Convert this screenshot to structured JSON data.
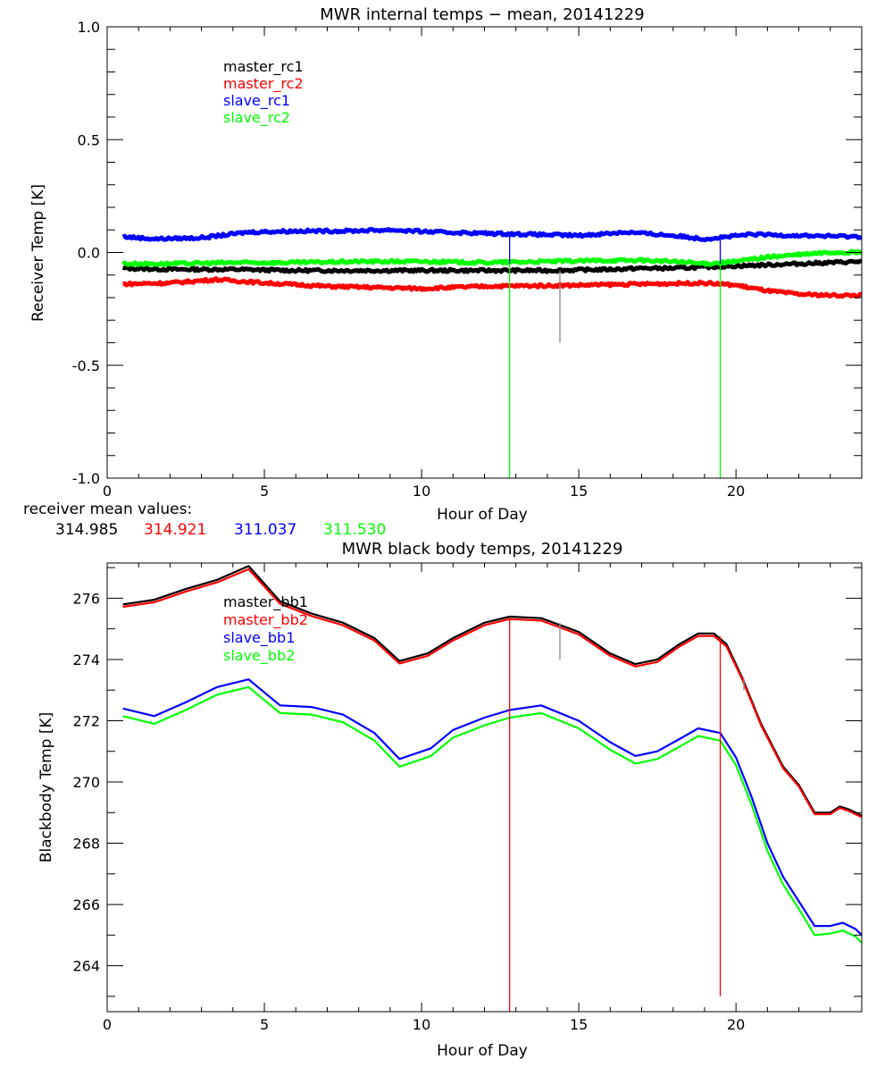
{
  "chart_data": [
    {
      "type": "line",
      "title": "MWR internal temps − mean, 20141229",
      "xlabel": "Hour of Day",
      "ylabel": "Receiver Temp [K]",
      "xlim": [
        0,
        24
      ],
      "ylim": [
        -1.0,
        1.0
      ],
      "xticks": [
        "0",
        "5",
        "10",
        "15",
        "20"
      ],
      "xtick_values": [
        0,
        5,
        10,
        15,
        20
      ],
      "yticks": [
        "-1.0",
        "-0.5",
        "0.0",
        "0.5",
        "1.0"
      ],
      "ytick_values": [
        -1.0,
        -0.5,
        0.0,
        0.5,
        1.0
      ],
      "legend_position": "top-left",
      "series": [
        {
          "name": "master_rc1",
          "color": "#000000",
          "x": [
            0.5,
            2,
            4,
            6,
            8,
            10,
            12,
            14,
            16,
            17,
            18,
            19,
            20,
            21,
            22,
            23,
            24
          ],
          "y": [
            -0.07,
            -0.075,
            -0.075,
            -0.08,
            -0.08,
            -0.08,
            -0.08,
            -0.08,
            -0.075,
            -0.07,
            -0.07,
            -0.065,
            -0.06,
            -0.055,
            -0.05,
            -0.045,
            -0.04
          ]
        },
        {
          "name": "master_rc2",
          "color": "#ff0000",
          "x": [
            0.5,
            2,
            3.5,
            5,
            7,
            10,
            12,
            15,
            17,
            19,
            20,
            21,
            22,
            23,
            24
          ],
          "y": [
            -0.14,
            -0.135,
            -0.12,
            -0.135,
            -0.15,
            -0.16,
            -0.15,
            -0.145,
            -0.14,
            -0.135,
            -0.145,
            -0.17,
            -0.185,
            -0.19,
            -0.19
          ]
        },
        {
          "name": "slave_rc1",
          "color": "#0000ff",
          "x": [
            0.5,
            1.5,
            3,
            4.5,
            6,
            7.5,
            9,
            10.5,
            12,
            13.5,
            15,
            16.5,
            18,
            19,
            20.5,
            22,
            24
          ],
          "y": [
            0.07,
            0.06,
            0.065,
            0.09,
            0.095,
            0.095,
            0.1,
            0.09,
            0.085,
            0.08,
            0.075,
            0.09,
            0.075,
            0.06,
            0.08,
            0.075,
            0.07
          ]
        },
        {
          "name": "slave_rc2",
          "color": "#00ff00",
          "x": [
            0.5,
            2,
            4,
            6,
            8,
            10,
            12,
            14,
            16,
            17,
            18,
            19,
            20,
            21,
            22,
            23,
            24
          ],
          "y": [
            -0.05,
            -0.05,
            -0.045,
            -0.045,
            -0.04,
            -0.04,
            -0.045,
            -0.04,
            -0.035,
            -0.035,
            -0.04,
            -0.05,
            -0.04,
            -0.02,
            -0.01,
            0.0,
            0.0
          ]
        }
      ],
      "spikes": [
        {
          "color": "#00ff00",
          "x": 12.8,
          "from": -0.05,
          "to": -1.0
        },
        {
          "color": "#00ff00",
          "x": 19.5,
          "from": -0.05,
          "to": -1.0
        },
        {
          "color": "#0000ff",
          "x": 12.8,
          "from": 0.08,
          "to": -0.05
        },
        {
          "color": "#0000ff",
          "x": 19.5,
          "from": 0.07,
          "to": -0.05
        },
        {
          "color": "#888888",
          "x": 14.4,
          "from": -0.08,
          "to": -0.4
        }
      ],
      "annotation_label": "receiver mean values:",
      "mean_values": [
        {
          "value": "314.985",
          "color": "#000000"
        },
        {
          "value": "314.921",
          "color": "#ff0000"
        },
        {
          "value": "311.037",
          "color": "#0000ff"
        },
        {
          "value": "311.530",
          "color": "#00ff00"
        }
      ]
    },
    {
      "type": "line",
      "title": "MWR black body temps, 20141229",
      "xlabel": "Hour of Day",
      "ylabel": "Blackbody Temp [K]",
      "xlim": [
        0,
        24
      ],
      "ylim": [
        262.5,
        277.15
      ],
      "xticks": [
        "0",
        "5",
        "10",
        "15",
        "20"
      ],
      "xtick_values": [
        0,
        5,
        10,
        15,
        20
      ],
      "yticks": [
        "264",
        "266",
        "268",
        "270",
        "272",
        "274",
        "276"
      ],
      "ytick_values": [
        264,
        266,
        268,
        270,
        272,
        274,
        276
      ],
      "legend_position": "top-left",
      "series": [
        {
          "name": "master_bb1",
          "color": "#000000",
          "x": [
            0.5,
            1.5,
            2.5,
            3.5,
            4.5,
            5.5,
            6.5,
            7.5,
            8.5,
            9.3,
            10.2,
            11,
            12,
            12.8,
            13.8,
            15,
            16,
            16.8,
            17.5,
            18.2,
            18.8,
            19.3,
            19.7,
            20.2,
            20.8,
            21.5,
            22,
            22.5,
            23,
            23.3,
            23.6,
            24
          ],
          "y": [
            275.8,
            275.95,
            276.3,
            276.6,
            277.05,
            275.9,
            275.5,
            275.2,
            274.7,
            273.95,
            274.2,
            274.7,
            275.2,
            275.4,
            275.35,
            274.9,
            274.2,
            273.85,
            274.0,
            274.5,
            274.85,
            274.85,
            274.5,
            273.4,
            271.9,
            270.5,
            269.9,
            269.0,
            269.0,
            269.2,
            269.1,
            268.9
          ]
        },
        {
          "name": "master_bb2",
          "color": "#ff0000",
          "x": [
            0.5,
            1.5,
            2.5,
            3.5,
            4.5,
            5.5,
            6.5,
            7.5,
            8.5,
            9.3,
            10.2,
            11,
            12,
            12.8,
            13.8,
            15,
            16,
            16.8,
            17.5,
            18.2,
            18.8,
            19.3,
            19.7,
            20.2,
            20.8,
            21.5,
            22,
            22.5,
            23,
            23.3,
            23.6,
            24
          ],
          "y": [
            275.72,
            275.87,
            276.22,
            276.52,
            276.95,
            275.82,
            275.42,
            275.12,
            274.62,
            273.87,
            274.12,
            274.62,
            275.12,
            275.32,
            275.27,
            274.82,
            274.12,
            273.77,
            273.92,
            274.42,
            274.77,
            274.77,
            274.42,
            273.35,
            271.85,
            270.45,
            269.85,
            268.95,
            268.95,
            269.15,
            269.05,
            268.85
          ]
        },
        {
          "name": "slave_bb1",
          "color": "#0000ff",
          "x": [
            0.5,
            1.5,
            2.5,
            3.5,
            4.5,
            5.5,
            6.5,
            7.5,
            8.5,
            9.3,
            10.3,
            11,
            12,
            12.8,
            13.8,
            15,
            16,
            16.8,
            17.5,
            18.2,
            18.8,
            19.5,
            20,
            20.5,
            21,
            21.5,
            22,
            22.5,
            23,
            23.4,
            23.8,
            24
          ],
          "y": [
            272.4,
            272.15,
            272.6,
            273.1,
            273.35,
            272.5,
            272.45,
            272.2,
            271.6,
            270.75,
            271.1,
            271.7,
            272.1,
            272.35,
            272.5,
            272.0,
            271.3,
            270.85,
            271.0,
            271.4,
            271.75,
            271.6,
            270.8,
            269.5,
            268.0,
            266.9,
            266.1,
            265.3,
            265.3,
            265.4,
            265.2,
            265.0
          ]
        },
        {
          "name": "slave_bb2",
          "color": "#00ff00",
          "x": [
            0.5,
            1.5,
            2.5,
            3.5,
            4.5,
            5.5,
            6.5,
            7.5,
            8.5,
            9.3,
            10.3,
            11,
            12,
            12.8,
            13.8,
            15,
            16,
            16.8,
            17.5,
            18.2,
            18.8,
            19.5,
            20,
            20.5,
            21,
            21.5,
            22,
            22.5,
            23,
            23.4,
            23.8,
            24
          ],
          "y": [
            272.15,
            271.9,
            272.35,
            272.85,
            273.1,
            272.25,
            272.2,
            271.95,
            271.35,
            270.5,
            270.85,
            271.45,
            271.85,
            272.1,
            272.25,
            271.75,
            271.05,
            270.6,
            270.75,
            271.15,
            271.5,
            271.35,
            270.55,
            269.25,
            267.75,
            266.65,
            265.85,
            265.0,
            265.05,
            265.15,
            264.95,
            264.75
          ]
        }
      ],
      "spikes": [
        {
          "color": "#ff0000",
          "x": 12.8,
          "from": 275.35,
          "to": 262.5
        },
        {
          "color": "#ff0000",
          "x": 19.5,
          "from": 274.75,
          "to": 263.0
        },
        {
          "color": "#888888",
          "x": 14.4,
          "from": 275.2,
          "to": 274.0
        },
        {
          "color": "#888888",
          "x": 20.25,
          "from": 273.4,
          "to": 273.0
        }
      ]
    }
  ]
}
